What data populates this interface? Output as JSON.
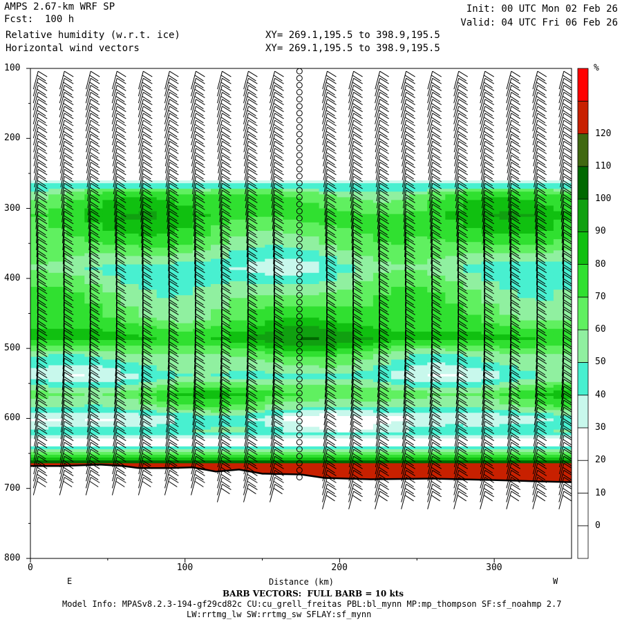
{
  "header": {
    "left": [
      "AMPS 2.67-km WRF SP",
      "Fcst:  100 h",
      "Relative humidity (w.r.t. ice)",
      "Horizontal wind vectors"
    ],
    "xy": [
      "XY= 269.1,195.5 to 398.9,195.5",
      "XY= 269.1,195.5 to 398.9,195.5"
    ],
    "right": [
      "Init: 00 UTC Mon 02 Feb 26",
      "Valid: 04 UTC Fri 06 Feb 26"
    ]
  },
  "footer": {
    "barb_note": "BARB VECTORS:  FULL BARB = 10 kts",
    "model_info": "Model Info: MPASv8.2.3-194-gf29cd82c CU:cu_grell_freitas PBL:bl_mynn MP:mp_thompson SF:sf_noahmp 2.7",
    "model_info2": "LW:rrtmg_lw SW:rrtmg_sw SFLAY:sf_mynn"
  },
  "chart_data": {
    "type": "heatmap",
    "title": "Relative humidity (w.r.t. ice)",
    "xlabel": "Distance (km)",
    "xlim": [
      0,
      350
    ],
    "x_ticks": [
      "0",
      "100",
      "200",
      "300"
    ],
    "x_tick_values": [
      0,
      100,
      200,
      300
    ],
    "ylim": [
      800,
      100
    ],
    "y_ticks": [
      "100",
      "200",
      "300",
      "400",
      "500",
      "600",
      "700",
      "800"
    ],
    "y_tick_values": [
      100,
      200,
      300,
      400,
      500,
      600,
      700,
      800
    ],
    "endpoints": {
      "left": "E",
      "right": "W"
    },
    "colorbar": {
      "unit": "%",
      "labels": [
        "0",
        "10",
        "20",
        "30",
        "40",
        "50",
        "60",
        "70",
        "80",
        "90",
        "100",
        "110",
        "120"
      ],
      "levels": [
        -10,
        0,
        10,
        20,
        30,
        40,
        50,
        60,
        70,
        80,
        90,
        100,
        110,
        120,
        130
      ],
      "colors": [
        "#ffffff",
        "#ffffff",
        "#ffffff",
        "#ffffff",
        "#c8f8ec",
        "#48f0d0",
        "#90f0a0",
        "#60f060",
        "#30e030",
        "#10c010",
        "#10a010",
        "#006800",
        "#406810",
        "#c82000",
        "#ff0000"
      ]
    },
    "rh_profile": [
      {
        "p": 100,
        "rh": 0
      },
      {
        "p": 250,
        "rh": 0
      },
      {
        "p": 262,
        "rh": 32
      },
      {
        "p": 280,
        "rh": 68
      },
      {
        "p": 310,
        "rh": 78
      },
      {
        "p": 350,
        "rh": 65
      },
      {
        "p": 385,
        "rh": 45
      },
      {
        "p": 420,
        "rh": 60
      },
      {
        "p": 460,
        "rh": 72
      },
      {
        "p": 485,
        "rh": 88
      },
      {
        "p": 510,
        "rh": 60
      },
      {
        "p": 540,
        "rh": 42
      },
      {
        "p": 565,
        "rh": 72
      },
      {
        "p": 585,
        "rh": 55
      },
      {
        "p": 600,
        "rh": 30
      },
      {
        "p": 620,
        "rh": 45
      },
      {
        "p": 635,
        "rh": 10
      },
      {
        "p": 645,
        "rh": 55
      },
      {
        "p": 655,
        "rh": 72
      },
      {
        "p": 662,
        "rh": 100
      },
      {
        "p": 667,
        "rh": 125
      }
    ],
    "terrain": [
      {
        "x": 0,
        "p": 668
      },
      {
        "x": 20,
        "p": 668
      },
      {
        "x": 45,
        "p": 666
      },
      {
        "x": 60,
        "p": 668
      },
      {
        "x": 70,
        "p": 671
      },
      {
        "x": 90,
        "p": 671
      },
      {
        "x": 105,
        "p": 670
      },
      {
        "x": 120,
        "p": 676
      },
      {
        "x": 135,
        "p": 673
      },
      {
        "x": 150,
        "p": 679
      },
      {
        "x": 175,
        "p": 680
      },
      {
        "x": 190,
        "p": 685
      },
      {
        "x": 220,
        "p": 687
      },
      {
        "x": 260,
        "p": 686
      },
      {
        "x": 300,
        "p": 688
      },
      {
        "x": 330,
        "p": 690
      },
      {
        "x": 350,
        "p": 691
      }
    ],
    "barb_columns_x": [
      5,
      22,
      39,
      56,
      73,
      90,
      107,
      124,
      141,
      158,
      174,
      192,
      209,
      226,
      243,
      260,
      277,
      294,
      311,
      328,
      345
    ],
    "calm_column_x": 174
  }
}
